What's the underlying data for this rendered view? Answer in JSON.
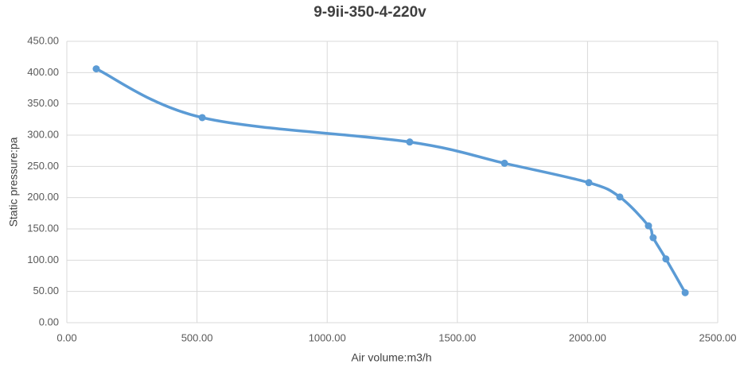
{
  "chart_data": {
    "type": "scatter-smooth",
    "title": "9-9ii-350-4-220v",
    "x_label": "Air volume:m3/h",
    "y_label": "Static pressure:pa",
    "x": [
      113,
      520,
      1317,
      1681,
      2005,
      2124,
      2234,
      2252,
      2301,
      2375
    ],
    "values": [
      406,
      328,
      289,
      255,
      224,
      201,
      155,
      136,
      102,
      48
    ],
    "color": "#5b9bd5",
    "xlim": [
      0,
      2500
    ],
    "xticks": [
      {
        "value": 0,
        "label": "0.00"
      },
      {
        "value": 500,
        "label": "500.00"
      },
      {
        "value": 1000,
        "label": "1000.00"
      },
      {
        "value": 1500,
        "label": "1500.00"
      },
      {
        "value": 2000,
        "label": "2000.00"
      },
      {
        "value": 2500,
        "label": "2500.00"
      }
    ],
    "ylim": [
      0,
      450
    ],
    "yticks": [
      {
        "value": 0,
        "label": "0.00"
      },
      {
        "value": 50,
        "label": "50.00"
      },
      {
        "value": 100,
        "label": "100.00"
      },
      {
        "value": 150,
        "label": "150.00"
      },
      {
        "value": 200,
        "label": "200.00"
      },
      {
        "value": 250,
        "label": "250.00"
      },
      {
        "value": 300,
        "label": "300.00"
      },
      {
        "value": 350,
        "label": "350.00"
      },
      {
        "value": 400,
        "label": "400.00"
      },
      {
        "value": 450,
        "label": "450.00"
      }
    ],
    "grid": true
  }
}
